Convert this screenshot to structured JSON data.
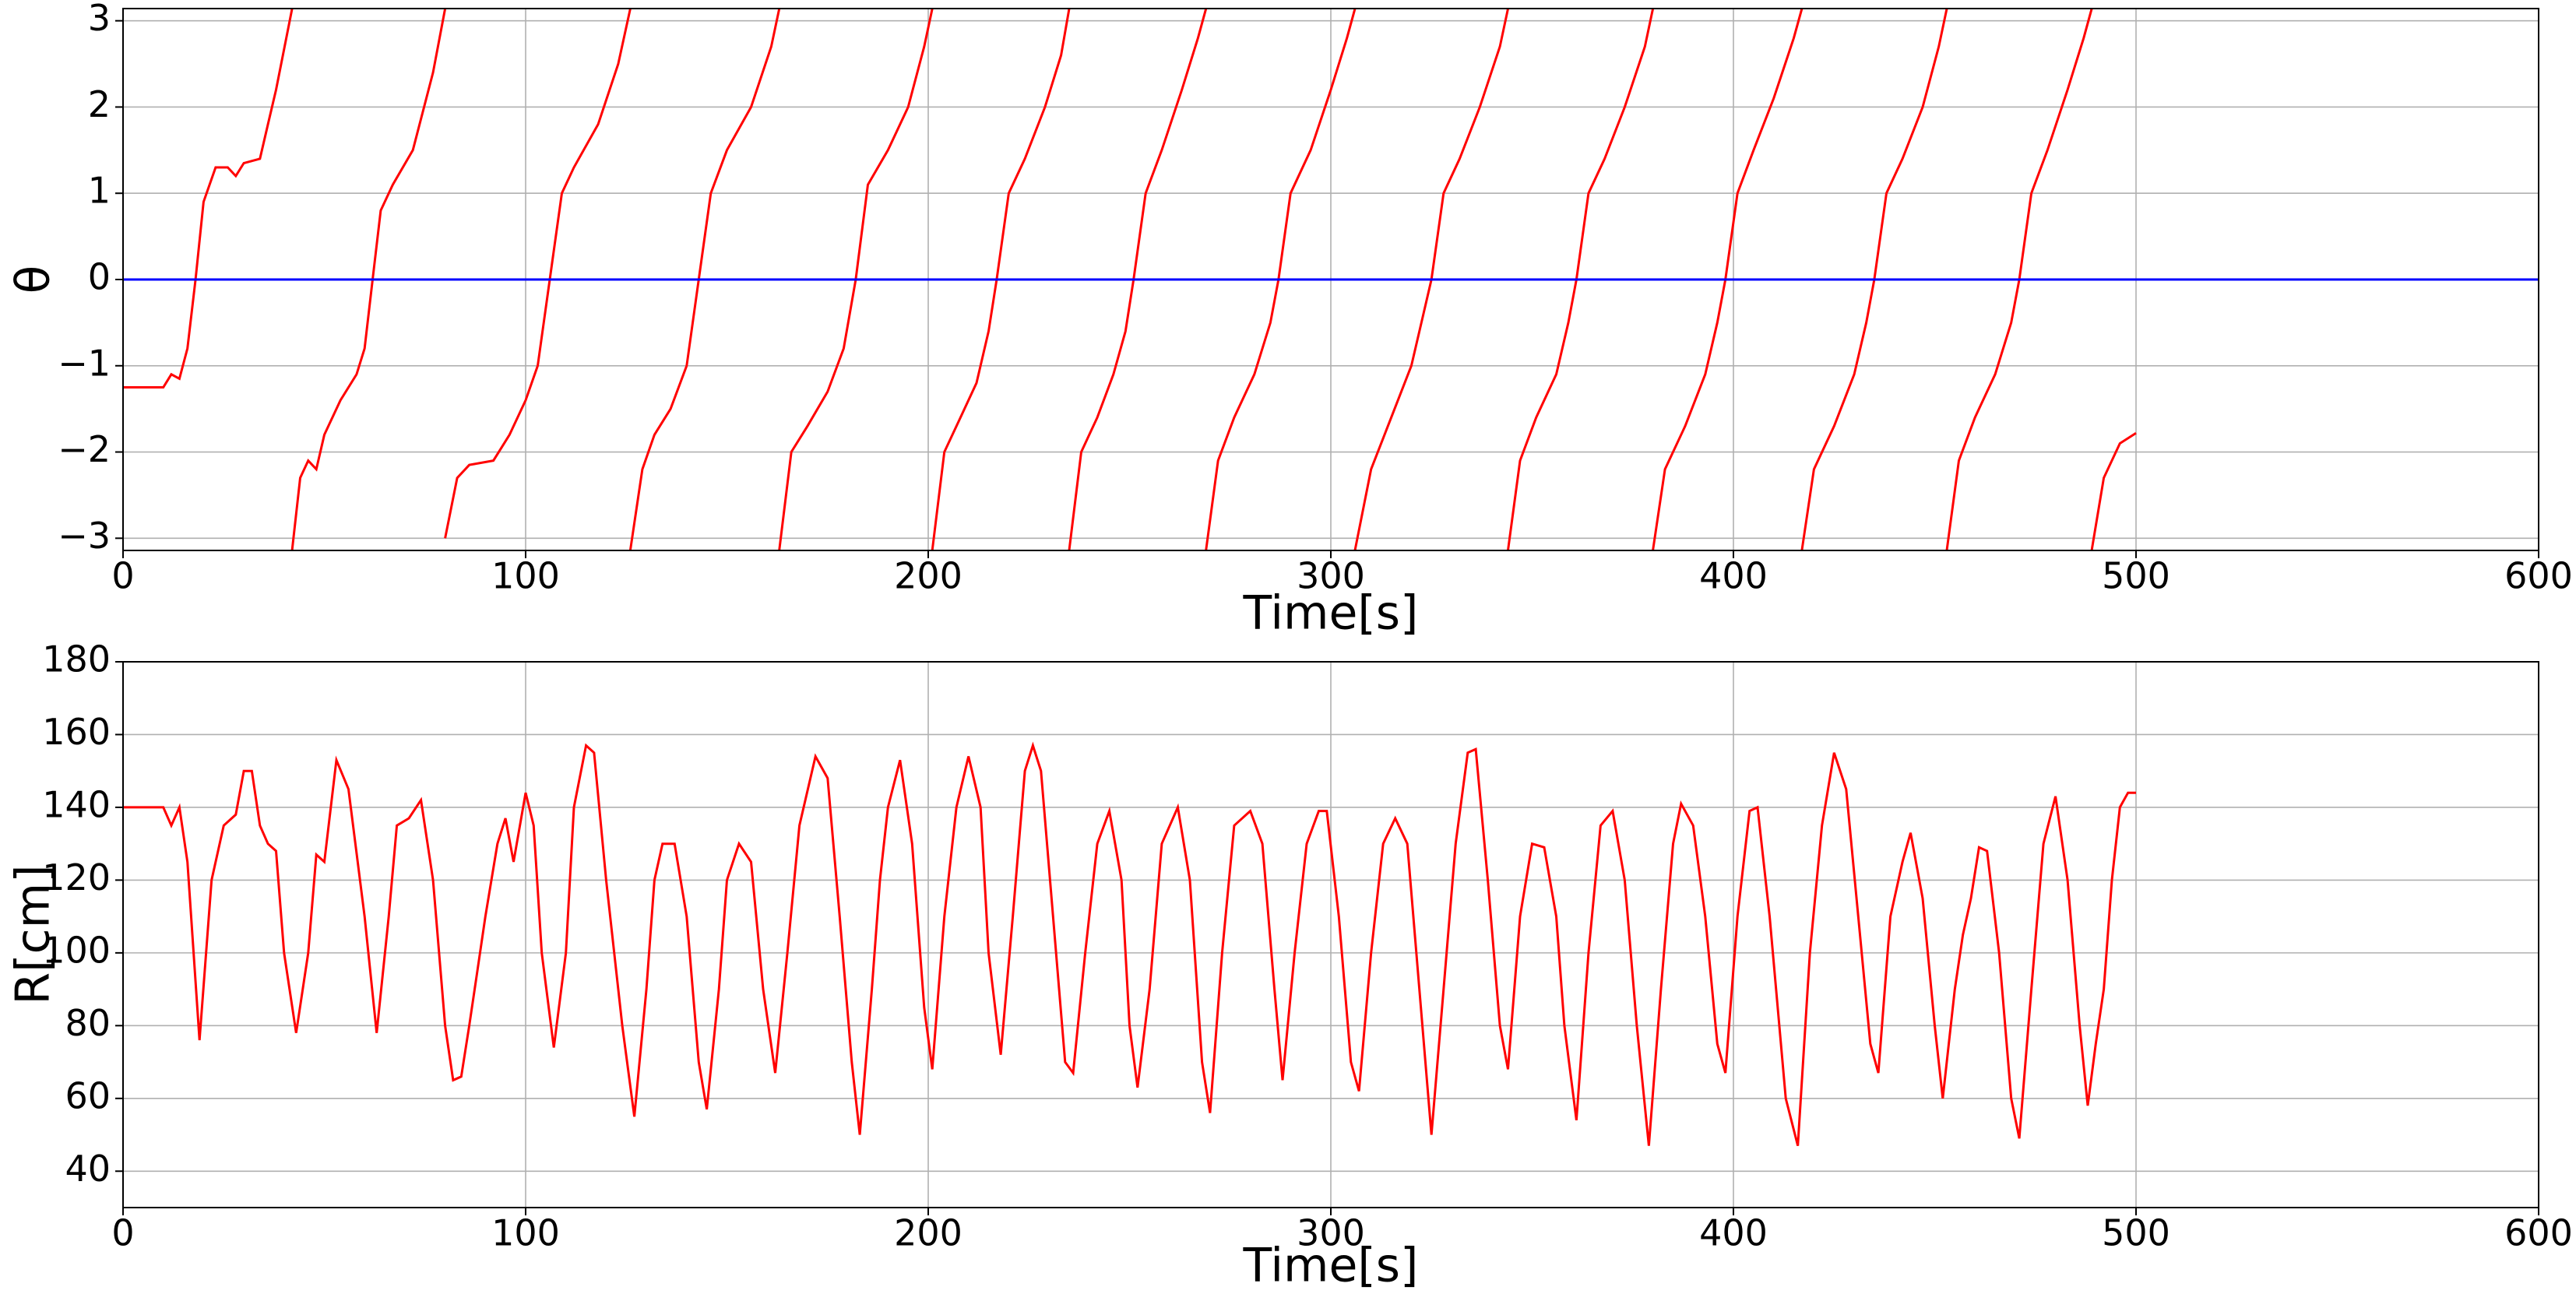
{
  "chart_data": [
    {
      "type": "line",
      "xlabel": "Time[s]",
      "ylabel": "θ",
      "xlim": [
        0,
        600
      ],
      "xticks": [
        0,
        100,
        200,
        300,
        400,
        500,
        600
      ],
      "ylim": [
        -3.14159,
        3.14159
      ],
      "yticks": [
        {
          "value": -3,
          "label": "−3"
        },
        {
          "value": -2,
          "label": "−2"
        },
        {
          "value": -1,
          "label": "−1"
        },
        0,
        1,
        2,
        3
      ],
      "grid": true,
      "series": [
        {
          "color": "#ff0000",
          "x": [
            0,
            10,
            12,
            14,
            16,
            18,
            20,
            23,
            26,
            28,
            30,
            34,
            36,
            38,
            42,
            42,
            42,
            44,
            46,
            48,
            50,
            54,
            58,
            60,
            62,
            64,
            67,
            72,
            77,
            80,
            80,
            80,
            83,
            86,
            92,
            96,
            100,
            103,
            106,
            109,
            112,
            118,
            123,
            126,
            126,
            126,
            129,
            132,
            136,
            140,
            143,
            146,
            150,
            156,
            161,
            163,
            163,
            163,
            166,
            170,
            175,
            179,
            182,
            185,
            190,
            195,
            199,
            201,
            201,
            201,
            204,
            208,
            212,
            215,
            217,
            220,
            224,
            229,
            233,
            235,
            235,
            235,
            238,
            242,
            246,
            249,
            251,
            254,
            258,
            263,
            267,
            269,
            269,
            269,
            272,
            276,
            281,
            285,
            287,
            290,
            295,
            300,
            304,
            306,
            306,
            306,
            310,
            315,
            320,
            323,
            325,
            328,
            332,
            337,
            342,
            344,
            344,
            344,
            347,
            351,
            356,
            359,
            361,
            364,
            368,
            373,
            378,
            380,
            380,
            380,
            383,
            388,
            393,
            396,
            398,
            401,
            405,
            410,
            415,
            417,
            417,
            417,
            420,
            425,
            430,
            433,
            435,
            438,
            442,
            447,
            451,
            453,
            453,
            453,
            456,
            460,
            465,
            469,
            471,
            474,
            478,
            483,
            487,
            489,
            489,
            489,
            492,
            496,
            500
          ],
          "values": [
            -1.25,
            -1.25,
            -1.1,
            -1.15,
            -0.8,
            0,
            0.9,
            1.3,
            1.3,
            1.2,
            1.35,
            1.4,
            1.8,
            2.2,
            3.14,
            null,
            -3.14,
            -2.3,
            -2.1,
            -2.2,
            -1.8,
            -1.4,
            -1.1,
            -0.8,
            0,
            0.8,
            1.1,
            1.5,
            2.4,
            3.14,
            null,
            -3.0,
            -2.3,
            -2.15,
            -2.1,
            -1.8,
            -1.4,
            -1.0,
            0,
            1.0,
            1.3,
            1.8,
            2.5,
            3.14,
            null,
            -3.14,
            -2.2,
            -1.8,
            -1.5,
            -1.0,
            0,
            1.0,
            1.5,
            2.0,
            2.7,
            3.14,
            null,
            -3.14,
            -2.0,
            -1.7,
            -1.3,
            -0.8,
            0,
            1.1,
            1.5,
            2.0,
            2.7,
            3.14,
            null,
            -3.14,
            -2.0,
            -1.6,
            -1.2,
            -0.6,
            0,
            1.0,
            1.4,
            2.0,
            2.6,
            3.14,
            null,
            -3.14,
            -2.0,
            -1.6,
            -1.1,
            -0.6,
            0,
            1.0,
            1.5,
            2.2,
            2.8,
            3.14,
            null,
            -3.14,
            -2.1,
            -1.6,
            -1.1,
            -0.5,
            0,
            1.0,
            1.5,
            2.2,
            2.8,
            3.14,
            null,
            -3.14,
            -2.2,
            -1.6,
            -1.0,
            -0.4,
            0,
            1.0,
            1.4,
            2.0,
            2.7,
            3.14,
            null,
            -3.14,
            -2.1,
            -1.6,
            -1.1,
            -0.5,
            0,
            1.0,
            1.4,
            2.0,
            2.7,
            3.14,
            null,
            -3.14,
            -2.2,
            -1.7,
            -1.1,
            -0.5,
            0,
            1.0,
            1.5,
            2.1,
            2.8,
            3.14,
            null,
            -3.14,
            -2.2,
            -1.7,
            -1.1,
            -0.5,
            0,
            1.0,
            1.4,
            2.0,
            2.7,
            3.14,
            null,
            -3.14,
            -2.1,
            -1.6,
            -1.1,
            -0.5,
            0,
            1.0,
            1.5,
            2.2,
            2.8,
            3.14,
            null,
            -3.14,
            -2.3,
            -1.9,
            -1.78
          ]
        },
        {
          "color": "#0000ff",
          "x": [
            0,
            600
          ],
          "values": [
            0,
            0
          ]
        }
      ]
    },
    {
      "type": "line",
      "xlabel": "Time[s]",
      "ylabel": "R[cm]",
      "xlim": [
        0,
        600
      ],
      "xticks": [
        0,
        100,
        200,
        300,
        400,
        500,
        600
      ],
      "ylim": [
        30,
        180
      ],
      "yticks": [
        40,
        60,
        80,
        100,
        120,
        140,
        160,
        180
      ],
      "grid": true,
      "series": [
        {
          "color": "#ff0000",
          "x": [
            0,
            10,
            12,
            14,
            16,
            19,
            22,
            25,
            28,
            30,
            32,
            34,
            36,
            38,
            40,
            43,
            46,
            48,
            50,
            53,
            56,
            60,
            63,
            66,
            68,
            71,
            74,
            77,
            80,
            82,
            84,
            86,
            88,
            90,
            93,
            95,
            97,
            100,
            102,
            104,
            107,
            110,
            112,
            115,
            117,
            120,
            124,
            127,
            130,
            132,
            134,
            137,
            140,
            143,
            145,
            148,
            150,
            153,
            156,
            159,
            162,
            165,
            168,
            172,
            175,
            178,
            181,
            183,
            186,
            188,
            190,
            193,
            196,
            199,
            201,
            204,
            207,
            210,
            213,
            215,
            218,
            221,
            224,
            226,
            228,
            231,
            234,
            236,
            239,
            242,
            245,
            248,
            250,
            252,
            255,
            258,
            262,
            265,
            268,
            270,
            273,
            276,
            280,
            283,
            286,
            288,
            291,
            294,
            297,
            299,
            302,
            305,
            307,
            310,
            313,
            316,
            319,
            322,
            325,
            328,
            331,
            334,
            336,
            339,
            342,
            344,
            347,
            350,
            353,
            356,
            358,
            361,
            364,
            367,
            370,
            373,
            376,
            379,
            382,
            385,
            387,
            390,
            393,
            396,
            398,
            401,
            404,
            406,
            409,
            413,
            416,
            419,
            422,
            425,
            428,
            431,
            434,
            436,
            439,
            442,
            444,
            447,
            450,
            452,
            455,
            457,
            459,
            461,
            463,
            466,
            469,
            471,
            474,
            477,
            480,
            483,
            486,
            488,
            490,
            492,
            494,
            496,
            498,
            500
          ],
          "values": [
            140,
            140,
            135,
            140,
            125,
            76,
            120,
            135,
            138,
            150,
            150,
            135,
            130,
            128,
            100,
            78,
            100,
            127,
            125,
            153,
            145,
            110,
            78,
            110,
            135,
            137,
            142,
            120,
            80,
            65,
            66,
            80,
            95,
            110,
            130,
            137,
            125,
            144,
            135,
            100,
            74,
            100,
            140,
            157,
            155,
            120,
            80,
            55,
            90,
            120,
            130,
            130,
            110,
            70,
            57,
            90,
            120,
            130,
            125,
            90,
            67,
            100,
            135,
            154,
            148,
            110,
            70,
            50,
            90,
            120,
            140,
            153,
            130,
            85,
            68,
            110,
            140,
            154,
            140,
            100,
            72,
            110,
            150,
            157,
            150,
            110,
            70,
            67,
            100,
            130,
            139,
            120,
            80,
            63,
            90,
            130,
            140,
            120,
            70,
            56,
            100,
            135,
            139,
            130,
            90,
            65,
            100,
            130,
            139,
            139,
            110,
            70,
            62,
            100,
            130,
            137,
            130,
            90,
            50,
            90,
            130,
            155,
            156,
            120,
            80,
            68,
            110,
            130,
            129,
            110,
            80,
            54,
            100,
            135,
            139,
            120,
            80,
            47,
            90,
            130,
            141,
            135,
            110,
            75,
            67,
            110,
            139,
            140,
            110,
            60,
            47,
            100,
            135,
            155,
            145,
            110,
            75,
            67,
            110,
            125,
            133,
            115,
            80,
            60,
            90,
            105,
            115,
            129,
            128,
            100,
            60,
            49,
            90,
            130,
            143,
            120,
            80,
            58,
            75,
            90,
            120,
            140,
            144,
            144
          ]
        }
      ]
    }
  ]
}
